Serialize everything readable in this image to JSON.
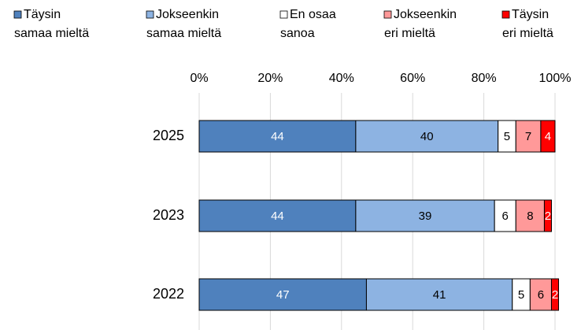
{
  "chart_data": {
    "type": "stacked_bar_horizontal",
    "categories": [
      "2025",
      "2023",
      "2022"
    ],
    "series": [
      {
        "name": "Täysin samaa mieltä",
        "color": "#4f81bd",
        "values": [
          44,
          44,
          47
        ]
      },
      {
        "name": "Jokseenkin samaa mieltä",
        "color": "#8db3e2",
        "values": [
          40,
          39,
          41
        ]
      },
      {
        "name": "En osaa sanoa",
        "color": "#ffffff",
        "values": [
          5,
          6,
          5
        ]
      },
      {
        "name": "Jokseenkin eri mieltä",
        "color": "#ff9999",
        "values": [
          7,
          8,
          6
        ]
      },
      {
        "name": "Täysin eri mieltä",
        "color": "#ff0000",
        "values": [
          4,
          2,
          2
        ]
      }
    ],
    "xlim": [
      0,
      100
    ],
    "xticks": [
      {
        "value": 0,
        "label": "0%"
      },
      {
        "value": 20,
        "label": "20%"
      },
      {
        "value": 40,
        "label": "40%"
      },
      {
        "value": 60,
        "label": "60%"
      },
      {
        "value": 80,
        "label": "80%"
      },
      {
        "value": 100,
        "label": "100%"
      }
    ],
    "grid": true,
    "legend": "top"
  }
}
